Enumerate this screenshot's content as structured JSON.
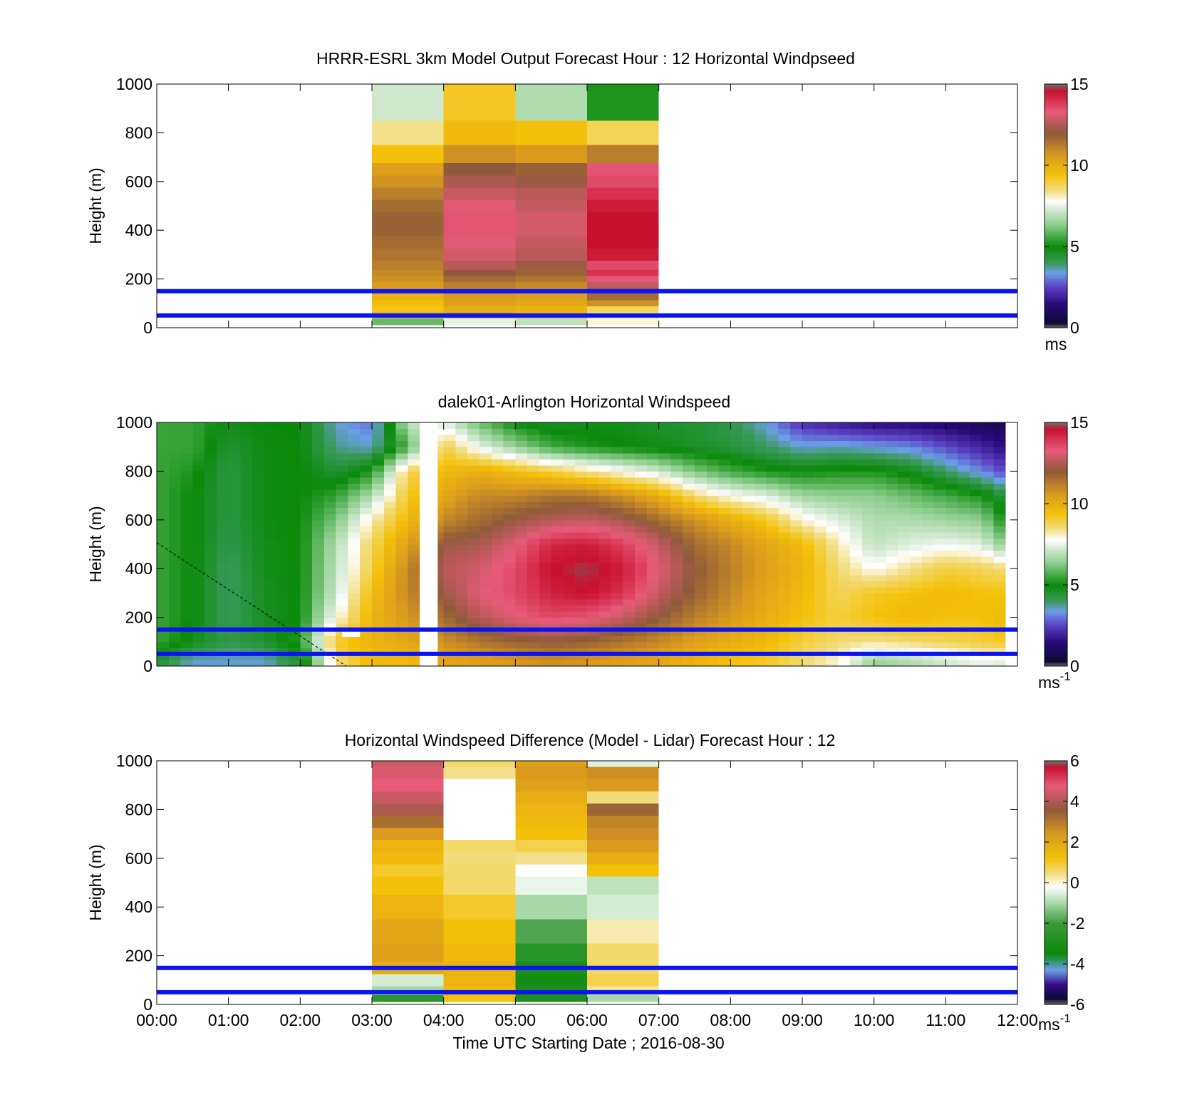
{
  "figure": {
    "xlabel": "Time UTC  Starting Date ; 2016-08-30",
    "xticks": [
      "00:00",
      "01:00",
      "02:00",
      "03:00",
      "04:00",
      "05:00",
      "06:00",
      "07:00",
      "08:00",
      "09:00",
      "10:00",
      "11:00",
      "12:00"
    ]
  },
  "colors": {
    "reference_lines": "#0a14f0",
    "speed_colormap": [
      [
        0.0,
        "#6e6e6e"
      ],
      [
        0.3,
        "#0b0b32"
      ],
      [
        1.5,
        "#2a0a7a"
      ],
      [
        2.5,
        "#5a3fc4"
      ],
      [
        3.4,
        "#6a9ee6"
      ],
      [
        4.0,
        "#3a9a5a"
      ],
      [
        5.0,
        "#0a8a0a"
      ],
      [
        6.4,
        "#8fcf8f"
      ],
      [
        7.4,
        "#dfeede"
      ],
      [
        7.8,
        "#ffffff"
      ],
      [
        8.4,
        "#f2e08a"
      ],
      [
        9.4,
        "#f4c10a"
      ],
      [
        10.6,
        "#d99a1e"
      ],
      [
        12.0,
        "#8f5a3a"
      ],
      [
        13.3,
        "#e85a7a"
      ],
      [
        14.6,
        "#c8102e"
      ],
      [
        15.0,
        "#6e6e6e"
      ]
    ],
    "diff_colormap": [
      [
        -6.0,
        "#6e6e6e"
      ],
      [
        -5.7,
        "#0b0b32"
      ],
      [
        -5.0,
        "#3a0a8a"
      ],
      [
        -4.3,
        "#6a9ee6"
      ],
      [
        -3.5,
        "#0a8a0a"
      ],
      [
        -2.0,
        "#3a9a3a"
      ],
      [
        -1.0,
        "#a8d8a8"
      ],
      [
        -0.2,
        "#ffffff"
      ],
      [
        0.4,
        "#f2e08a"
      ],
      [
        1.2,
        "#f4c10a"
      ],
      [
        2.4,
        "#d99a1e"
      ],
      [
        3.6,
        "#8f5a3a"
      ],
      [
        4.8,
        "#e85a7a"
      ],
      [
        5.7,
        "#c8102e"
      ],
      [
        6.0,
        "#6e6e6e"
      ]
    ]
  },
  "chart_data": [
    {
      "type": "heatmap",
      "title": "HRRR-ESRL 3km Model Output   Forecast Hour : 12 Horizontal Windpseed",
      "ylabel": "Height (m)",
      "xlim": [
        "00:00",
        "12:00"
      ],
      "ylim": [
        0,
        1000
      ],
      "yticks": [
        0,
        200,
        400,
        600,
        800,
        1000
      ],
      "colorbar": {
        "label": "ms",
        "ticks": [
          0,
          5,
          10,
          15
        ],
        "range": [
          0,
          15
        ]
      },
      "reference_lines_m": [
        50,
        150
      ],
      "grid": false,
      "columns": [
        {
          "start": "03:00",
          "end": "04:00"
        },
        {
          "start": "04:00",
          "end": "05:00"
        },
        {
          "start": "05:00",
          "end": "06:00"
        },
        {
          "start": "06:00",
          "end": "07:00"
        }
      ],
      "levels_m": [
        25,
        50,
        75,
        100,
        125,
        150,
        175,
        200,
        225,
        250,
        300,
        350,
        400,
        450,
        500,
        550,
        600,
        650,
        700,
        800,
        900,
        1000
      ],
      "values": [
        [
          6.0,
          7.5,
          7.0,
          8.0
        ],
        [
          9.8,
          10.2,
          9.8,
          8.4
        ],
        [
          9.3,
          10.0,
          9.8,
          8.8
        ],
        [
          9.5,
          10.4,
          10.2,
          10.8
        ],
        [
          9.8,
          10.6,
          10.4,
          11.6
        ],
        [
          10.2,
          10.8,
          10.6,
          12.2
        ],
        [
          10.6,
          11.2,
          11.0,
          12.8
        ],
        [
          10.8,
          11.6,
          11.4,
          13.2
        ],
        [
          11.0,
          12.0,
          11.8,
          14.0
        ],
        [
          11.2,
          12.6,
          12.2,
          13.6
        ],
        [
          11.4,
          13.0,
          12.6,
          14.4
        ],
        [
          11.6,
          13.2,
          12.8,
          14.6
        ],
        [
          11.8,
          13.4,
          13.0,
          14.6
        ],
        [
          11.8,
          13.4,
          13.0,
          14.6
        ],
        [
          11.6,
          13.2,
          12.8,
          14.4
        ],
        [
          11.2,
          12.8,
          12.6,
          14.0
        ],
        [
          10.8,
          12.4,
          12.2,
          13.6
        ],
        [
          10.4,
          12.0,
          11.8,
          13.4
        ],
        [
          9.4,
          10.8,
          10.6,
          11.2
        ],
        [
          8.4,
          9.6,
          9.4,
          8.8
        ],
        [
          7.2,
          9.2,
          6.8,
          5.2
        ],
        [
          7.2,
          9.2,
          6.8,
          5.2
        ]
      ]
    },
    {
      "type": "heatmap",
      "title": "dalek01-Arlington  Horizontal Windspeed",
      "ylabel": "Height (m)",
      "xlim": [
        "00:00",
        "12:00"
      ],
      "ylim": [
        0,
        1000
      ],
      "yticks": [
        0,
        200,
        400,
        600,
        800,
        1000
      ],
      "colorbar": {
        "label": "ms-1",
        "ticks": [
          0,
          5,
          10,
          15
        ],
        "range": [
          0,
          15
        ]
      },
      "reference_lines_m": [
        50,
        150
      ],
      "grid": false,
      "time_profile": {
        "times_h": [
          0.0,
          0.5,
          1.0,
          1.5,
          2.0,
          2.5,
          3.0,
          3.5,
          4.0,
          4.5,
          5.0,
          5.5,
          6.0,
          6.5,
          7.0,
          7.5,
          8.0,
          8.5,
          9.0,
          9.5,
          10.0,
          10.5,
          11.0,
          11.5,
          11.8
        ],
        "levels_m": [
          25,
          100,
          200,
          300,
          400,
          500,
          600,
          700,
          800,
          900,
          1000
        ],
        "values": [
          [
            4.5,
            5.5,
            5.5,
            5.5,
            5.5,
            5.5,
            5.5,
            5.5,
            5.5,
            5.5,
            5.5
          ],
          [
            3.5,
            4.8,
            5.0,
            5.0,
            5.0,
            5.0,
            5.0,
            5.0,
            5.2,
            5.5,
            5.5
          ],
          [
            3.5,
            4.2,
            4.0,
            4.0,
            4.0,
            4.2,
            4.3,
            4.3,
            4.3,
            4.5,
            4.8
          ],
          [
            3.5,
            4.5,
            4.7,
            4.7,
            4.8,
            4.8,
            4.9,
            4.9,
            4.9,
            4.9,
            5.0
          ],
          [
            4.5,
            5.3,
            5.0,
            5.0,
            5.0,
            5.0,
            5.0,
            5.0,
            5.0,
            5.0,
            5.0
          ],
          [
            8.5,
            9.2,
            7.8,
            7.2,
            7.0,
            6.8,
            6.2,
            5.4,
            4.5,
            3.8,
            3.5
          ],
          [
            9.6,
            9.8,
            9.8,
            9.5,
            9.0,
            8.8,
            8.2,
            6.8,
            5.2,
            3.5,
            3.0
          ],
          [
            9.6,
            10.2,
            10.6,
            11.0,
            11.0,
            10.4,
            9.6,
            9.2,
            8.8,
            5.8,
            7.0
          ],
          [
            10.2,
            10.8,
            11.6,
            12.2,
            12.6,
            12.2,
            11.0,
            10.2,
            9.6,
            9.0,
            7.5
          ],
          [
            10.4,
            11.4,
            12.6,
            13.2,
            13.0,
            12.4,
            11.6,
            11.0,
            10.0,
            7.5,
            6.0
          ],
          [
            10.6,
            11.8,
            13.2,
            13.6,
            13.6,
            13.2,
            12.2,
            11.0,
            9.5,
            6.5,
            5.0
          ],
          [
            10.8,
            12.0,
            13.6,
            14.3,
            14.6,
            14.2,
            12.6,
            11.4,
            9.0,
            5.6,
            4.6
          ],
          [
            10.6,
            11.8,
            13.4,
            14.6,
            14.8,
            14.4,
            12.8,
            11.4,
            8.4,
            5.2,
            4.8
          ],
          [
            10.4,
            11.4,
            12.8,
            14.0,
            14.4,
            13.8,
            12.4,
            10.8,
            7.8,
            5.0,
            4.8
          ],
          [
            10.2,
            11.0,
            12.0,
            12.8,
            13.2,
            12.8,
            11.6,
            10.0,
            7.2,
            4.8,
            4.6
          ],
          [
            9.8,
            10.4,
            11.2,
            11.8,
            12.0,
            11.6,
            10.8,
            8.6,
            6.2,
            4.6,
            4.5
          ],
          [
            9.4,
            10.0,
            10.6,
            11.0,
            11.2,
            11.0,
            10.0,
            7.8,
            5.6,
            4.4,
            4.2
          ],
          [
            9.2,
            9.6,
            10.0,
            10.2,
            10.4,
            10.2,
            9.2,
            7.4,
            5.2,
            4.0,
            3.4
          ],
          [
            8.6,
            9.0,
            9.4,
            9.6,
            9.8,
            9.6,
            8.0,
            6.6,
            5.0,
            3.5,
            2.2
          ],
          [
            8.0,
            8.6,
            9.0,
            8.8,
            8.6,
            8.2,
            7.4,
            6.4,
            5.2,
            3.6,
            1.8
          ],
          [
            6.5,
            8.4,
            9.4,
            9.2,
            7.8,
            7.0,
            6.8,
            6.4,
            5.2,
            3.4,
            1.5
          ],
          [
            6.8,
            8.6,
            9.6,
            9.4,
            8.4,
            7.4,
            6.8,
            6.0,
            4.8,
            3.2,
            1.4
          ],
          [
            7.2,
            8.8,
            9.4,
            9.6,
            9.0,
            7.6,
            6.6,
            5.6,
            4.0,
            2.6,
            1.2
          ],
          [
            7.6,
            9.0,
            9.4,
            9.4,
            8.8,
            7.4,
            6.4,
            5.2,
            3.2,
            2.0,
            1.0
          ],
          [
            7.4,
            9.2,
            9.6,
            9.4,
            8.6,
            6.4,
            5.2,
            4.4,
            2.6,
            1.6,
            0.8
          ]
        ],
        "missing_data": [
          {
            "start": "03:40",
            "end": "03:55",
            "from_m": 0,
            "to_m": 1000
          },
          {
            "start": "02:35",
            "end": "02:50",
            "from_m": 120,
            "to_m": 150
          }
        ]
      }
    },
    {
      "type": "heatmap",
      "title": "Horizontal Windspeed Difference (Model - Lidar) Forecast Hour : 12",
      "ylabel": "Height (m)",
      "xlabel": "Time UTC  Starting Date ; 2016-08-30",
      "xlim": [
        "00:00",
        "12:00"
      ],
      "ylim": [
        0,
        1000
      ],
      "yticks": [
        0,
        200,
        400,
        600,
        800,
        1000
      ],
      "xticks": [
        "00:00",
        "01:00",
        "02:00",
        "03:00",
        "04:00",
        "05:00",
        "06:00",
        "07:00",
        "08:00",
        "09:00",
        "10:00",
        "11:00",
        "12:00"
      ],
      "colorbar": {
        "label": "ms-1",
        "ticks": [
          -6,
          -4,
          -2,
          0,
          2,
          4,
          6
        ],
        "range": [
          -6,
          6
        ]
      },
      "reference_lines_m": [
        50,
        150
      ],
      "grid": false,
      "columns": [
        {
          "start": "03:00",
          "end": "04:00"
        },
        {
          "start": "04:00",
          "end": "05:00"
        },
        {
          "start": "05:00",
          "end": "06:00"
        },
        {
          "start": "06:00",
          "end": "07:00"
        }
      ],
      "levels_m": [
        25,
        50,
        100,
        150,
        200,
        300,
        400,
        500,
        550,
        600,
        650,
        700,
        750,
        800,
        850,
        900,
        950,
        1000
      ],
      "values": [
        [
          -2.5,
          1.2,
          -3.0,
          -1.0
        ],
        [
          -1.0,
          1.4,
          -3.0,
          0.3
        ],
        [
          -0.6,
          1.6,
          -3.2,
          0.8
        ],
        [
          1.8,
          1.6,
          -3.0,
          0.6
        ],
        [
          2.2,
          1.4,
          -2.6,
          0.6
        ],
        [
          2.0,
          1.2,
          -1.8,
          0.2
        ],
        [
          1.6,
          1.0,
          -1.0,
          -0.6
        ],
        [
          1.2,
          0.6,
          -0.4,
          -0.8
        ],
        [
          1.0,
          0.6,
          -0.2,
          1.2
        ],
        [
          1.4,
          0.5,
          0.4,
          1.8
        ],
        [
          1.6,
          0.6,
          0.8,
          2.4
        ],
        [
          2.4,
          null,
          1.2,
          2.6
        ],
        [
          3.2,
          null,
          1.4,
          2.8
        ],
        [
          4.0,
          null,
          1.6,
          3.4
        ],
        [
          4.4,
          null,
          1.8,
          0.5
        ],
        [
          4.8,
          null,
          2.2,
          2.4
        ],
        [
          4.6,
          0.4,
          2.4,
          2.6
        ],
        [
          4.4,
          0.6,
          2.2,
          -0.5
        ]
      ]
    }
  ]
}
